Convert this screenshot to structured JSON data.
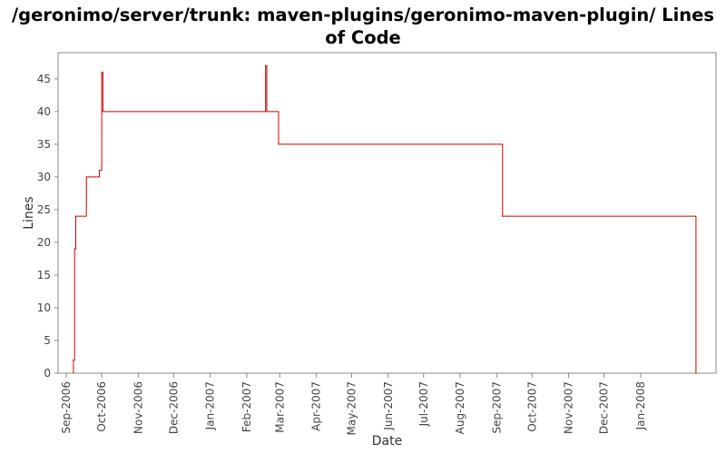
{
  "chart_data": {
    "type": "line",
    "title": "/geronimo/server/trunk: maven-plugins/geronimo-maven-plugin/ Lines of Code",
    "xlabel": "Date",
    "ylabel": "Lines",
    "ylim": [
      0,
      49
    ],
    "xlim": [
      "2006-08-25",
      "2008-03-05"
    ],
    "grid": false,
    "legend": "none",
    "line_style": "step",
    "colors": {
      "series": "#cc0000",
      "axis": "#888888",
      "text": "#444444"
    },
    "x_ticks": [
      {
        "label": "Sep-2006",
        "date": "2006-09-01"
      },
      {
        "label": "Oct-2006",
        "date": "2006-10-01"
      },
      {
        "label": "Nov-2006",
        "date": "2006-11-01"
      },
      {
        "label": "Dec-2006",
        "date": "2006-12-01"
      },
      {
        "label": "Jan-2007",
        "date": "2007-01-01"
      },
      {
        "label": "Feb-2007",
        "date": "2007-02-01"
      },
      {
        "label": "Mar-2007",
        "date": "2007-03-01"
      },
      {
        "label": "Apr-2007",
        "date": "2007-04-01"
      },
      {
        "label": "May-2007",
        "date": "2007-05-01"
      },
      {
        "label": "Jun-2007",
        "date": "2007-06-01"
      },
      {
        "label": "Jul-2007",
        "date": "2007-07-01"
      },
      {
        "label": "Aug-2007",
        "date": "2007-08-01"
      },
      {
        "label": "Sep-2007",
        "date": "2007-09-01"
      },
      {
        "label": "Oct-2007",
        "date": "2007-10-01"
      },
      {
        "label": "Nov-2007",
        "date": "2007-11-01"
      },
      {
        "label": "Dec-2007",
        "date": "2007-12-01"
      },
      {
        "label": "Jan-2008",
        "date": "2008-01-01"
      }
    ],
    "y_ticks": [
      0,
      5,
      10,
      15,
      20,
      25,
      30,
      35,
      40,
      45
    ],
    "series": [
      {
        "points": [
          {
            "x": "2006-09-07",
            "y": 2
          },
          {
            "x": "2006-09-08",
            "y": 19
          },
          {
            "x": "2006-09-09",
            "y": 24
          },
          {
            "x": "2006-09-18",
            "y": 30
          },
          {
            "x": "2006-09-29",
            "y": 31
          },
          {
            "x": "2006-10-01",
            "y": 46
          },
          {
            "x": "2006-10-02",
            "y": 40
          },
          {
            "x": "2007-02-17",
            "y": 47
          },
          {
            "x": "2007-02-18",
            "y": 40
          },
          {
            "x": "2007-02-28",
            "y": 35
          },
          {
            "x": "2007-09-06",
            "y": 24
          },
          {
            "x": "2008-02-17",
            "y": 0
          }
        ]
      }
    ]
  }
}
